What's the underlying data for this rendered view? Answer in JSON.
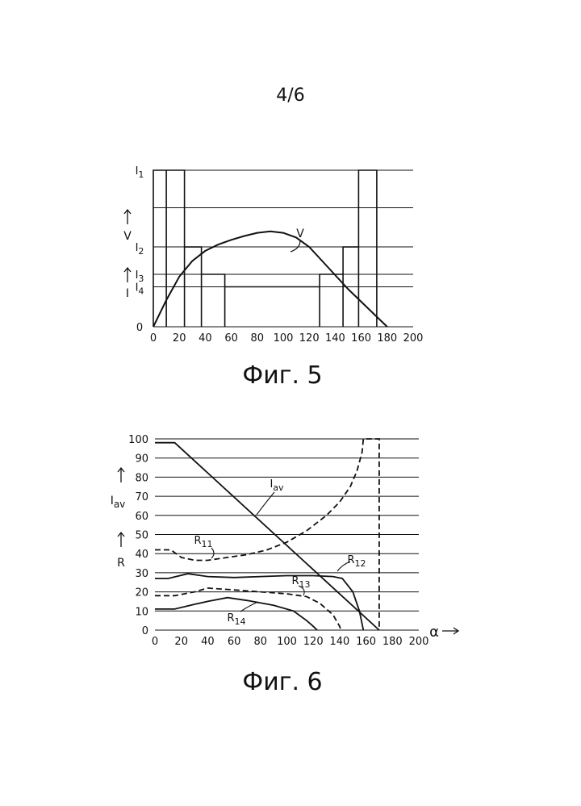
{
  "page_number": "4/6",
  "chart_data": [
    {
      "type": "line",
      "caption": "Фиг. 5",
      "x_ticks": [
        "0",
        "20",
        "40",
        "60",
        "80",
        "100",
        "120",
        "140",
        "160",
        "180",
        "200"
      ],
      "xlim": [
        0,
        200
      ],
      "y_ticks": [
        {
          "label": "I",
          "sub": "1",
          "value": 100
        },
        {
          "label": "I",
          "sub": "2",
          "value": 51
        },
        {
          "label": "I",
          "sub": "3",
          "value": 33.5
        },
        {
          "label": "I",
          "sub": "4",
          "value": 25.5
        },
        {
          "label": "0",
          "sub": "",
          "value": 0
        }
      ],
      "extra_gridlines": [
        76
      ],
      "y_axis_labels": [
        "V",
        "I"
      ],
      "series": [
        {
          "name": "V",
          "style": "solid",
          "points": [
            [
              0,
              0
            ],
            [
              10,
              17
            ],
            [
              20,
              32
            ],
            [
              30,
              42
            ],
            [
              40,
              48.5
            ],
            [
              50,
              52.5
            ],
            [
              60,
              55.5
            ],
            [
              70,
              58
            ],
            [
              80,
              60
            ],
            [
              90,
              61
            ],
            [
              100,
              60
            ],
            [
              110,
              57
            ],
            [
              120,
              51
            ],
            [
              130,
              42
            ],
            [
              140,
              33
            ],
            [
              150,
              24
            ],
            [
              160,
              16
            ],
            [
              170,
              8
            ],
            [
              180,
              0
            ]
          ]
        },
        {
          "name": "",
          "style": "solid",
          "points": [
            [
              0,
              0
            ],
            [
              0,
              100
            ],
            [
              10,
              100
            ],
            [
              10,
              0
            ],
            [
              10,
              0
            ],
            [
              10,
              100
            ],
            [
              24,
              100
            ],
            [
              24,
              0
            ],
            [
              24,
              51
            ],
            [
              37,
              51
            ],
            [
              37,
              0
            ],
            [
              37,
              33.5
            ],
            [
              55,
              33.5
            ],
            [
              55,
              0
            ],
            [
              55,
              25.5
            ],
            [
              128,
              25.5
            ],
            [
              128,
              0
            ],
            [
              128,
              33.5
            ],
            [
              146,
              33.5
            ],
            [
              146,
              0
            ],
            [
              146,
              51
            ],
            [
              158,
              51
            ],
            [
              158,
              0
            ],
            [
              158,
              100
            ],
            [
              172,
              100
            ],
            [
              172,
              0
            ]
          ]
        }
      ]
    },
    {
      "type": "line",
      "caption": "Фиг. 6",
      "x_ticks": [
        "0",
        "20",
        "40",
        "60",
        "80",
        "100",
        "120",
        "140",
        "160",
        "180",
        "200"
      ],
      "xlim": [
        0,
        200
      ],
      "y_ticks": [
        "100",
        "90",
        "80",
        "70",
        "60",
        "50",
        "40",
        "30",
        "20",
        "10",
        "0"
      ],
      "ylim": [
        0,
        100
      ],
      "y_axis_labels": [
        "I",
        "av",
        "R"
      ],
      "x_axis_label": "α",
      "series": [
        {
          "name": "I",
          "sub": "av",
          "style": "solid",
          "points": [
            [
              0,
              98
            ],
            [
              15,
              98
            ],
            [
              170,
              0
            ]
          ]
        },
        {
          "name": "R",
          "sub": "11",
          "style": "dashed",
          "points": [
            [
              0,
              42
            ],
            [
              12,
              42
            ],
            [
              20,
              38
            ],
            [
              30,
              36.5
            ],
            [
              40,
              36.5
            ],
            [
              55,
              38
            ],
            [
              70,
              39.5
            ],
            [
              85,
              42
            ],
            [
              100,
              46
            ],
            [
              115,
              52
            ],
            [
              130,
              60
            ],
            [
              140,
              67
            ],
            [
              148,
              75
            ],
            [
              153,
              83
            ],
            [
              157,
              93
            ],
            [
              158,
              100
            ],
            [
              170,
              100
            ],
            [
              170,
              0
            ]
          ]
        },
        {
          "name": "R",
          "sub": "12",
          "style": "solid",
          "points": [
            [
              0,
              27
            ],
            [
              10,
              27
            ],
            [
              25,
              29.5
            ],
            [
              40,
              28
            ],
            [
              60,
              27.5
            ],
            [
              80,
              28
            ],
            [
              100,
              28.5
            ],
            [
              120,
              28.5
            ],
            [
              135,
              28
            ],
            [
              142,
              27
            ],
            [
              150,
              20
            ],
            [
              155,
              10
            ],
            [
              158,
              0
            ]
          ]
        },
        {
          "name": "R",
          "sub": "13",
          "style": "dashed",
          "points": [
            [
              0,
              18
            ],
            [
              15,
              18
            ],
            [
              30,
              20
            ],
            [
              40,
              22
            ],
            [
              60,
              21
            ],
            [
              80,
              20
            ],
            [
              100,
              19
            ],
            [
              115,
              17.5
            ],
            [
              125,
              14
            ],
            [
              135,
              8
            ],
            [
              140,
              2
            ],
            [
              141,
              0
            ]
          ]
        },
        {
          "name": "R",
          "sub": "14",
          "style": "solid",
          "points": [
            [
              0,
              11
            ],
            [
              15,
              11
            ],
            [
              30,
              13.5
            ],
            [
              40,
              15
            ],
            [
              55,
              17
            ],
            [
              70,
              15.5
            ],
            [
              90,
              13
            ],
            [
              105,
              10
            ],
            [
              115,
              5
            ],
            [
              120,
              2
            ],
            [
              123,
              0
            ]
          ]
        }
      ]
    }
  ]
}
